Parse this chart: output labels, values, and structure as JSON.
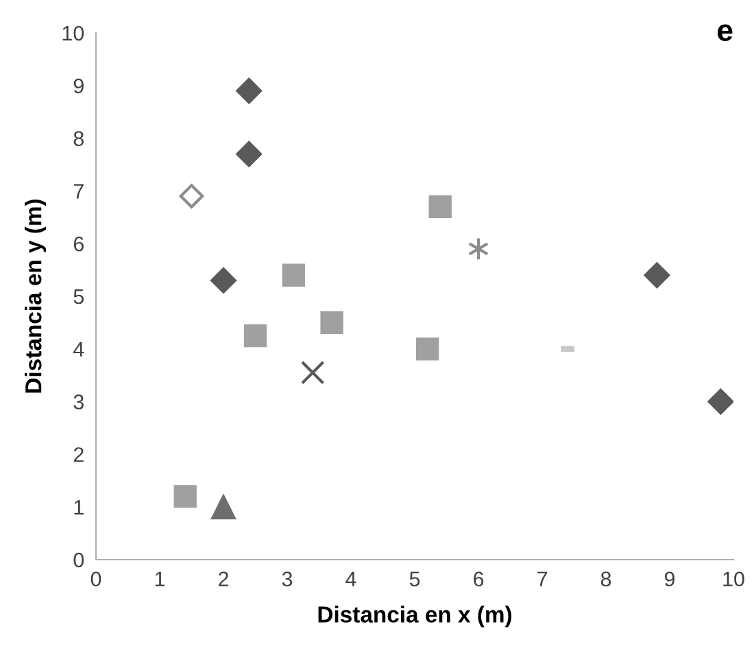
{
  "chart_data": {
    "type": "scatter",
    "title": "e",
    "xlabel": "Distancia en x (m)",
    "ylabel": "Distancia en y (m)",
    "xlim": [
      0,
      10
    ],
    "ylim": [
      0,
      10
    ],
    "xticks": [
      0,
      1,
      2,
      3,
      4,
      5,
      6,
      7,
      8,
      9,
      10
    ],
    "yticks": [
      0,
      1,
      2,
      3,
      4,
      5,
      6,
      7,
      8,
      9,
      10
    ],
    "grid": false,
    "legend": false,
    "series": [
      {
        "color": "#595959",
        "marker": "diamond",
        "x": [
          2.4,
          2.4,
          2.0,
          8.8,
          9.8
        ],
        "values": [
          8.9,
          7.7,
          5.3,
          5.4,
          3.0
        ]
      },
      {
        "color": "#8c8c8c",
        "marker": "diamond",
        "x": [
          1.5
        ],
        "values": [
          6.9
        ]
      },
      {
        "color": "#a0a0a0",
        "marker": "square",
        "x": [
          1.4,
          2.5,
          3.1,
          3.7,
          5.2,
          5.4
        ],
        "values": [
          1.2,
          4.25,
          5.4,
          4.5,
          4.0,
          6.7
        ]
      },
      {
        "color": "#6e6e6e",
        "marker": "triangle",
        "x": [
          2.0
        ],
        "values": [
          1.0
        ]
      },
      {
        "color": "#595959",
        "marker": "cross",
        "x": [
          3.4
        ],
        "values": [
          3.55
        ]
      },
      {
        "color": "#8c8c8c",
        "marker": "cross",
        "x": [
          6.0
        ],
        "values": [
          5.9
        ]
      },
      {
        "color": "#c8c8c8",
        "marker": "square",
        "x": [
          7.4
        ],
        "values": [
          4.0
        ]
      }
    ]
  }
}
